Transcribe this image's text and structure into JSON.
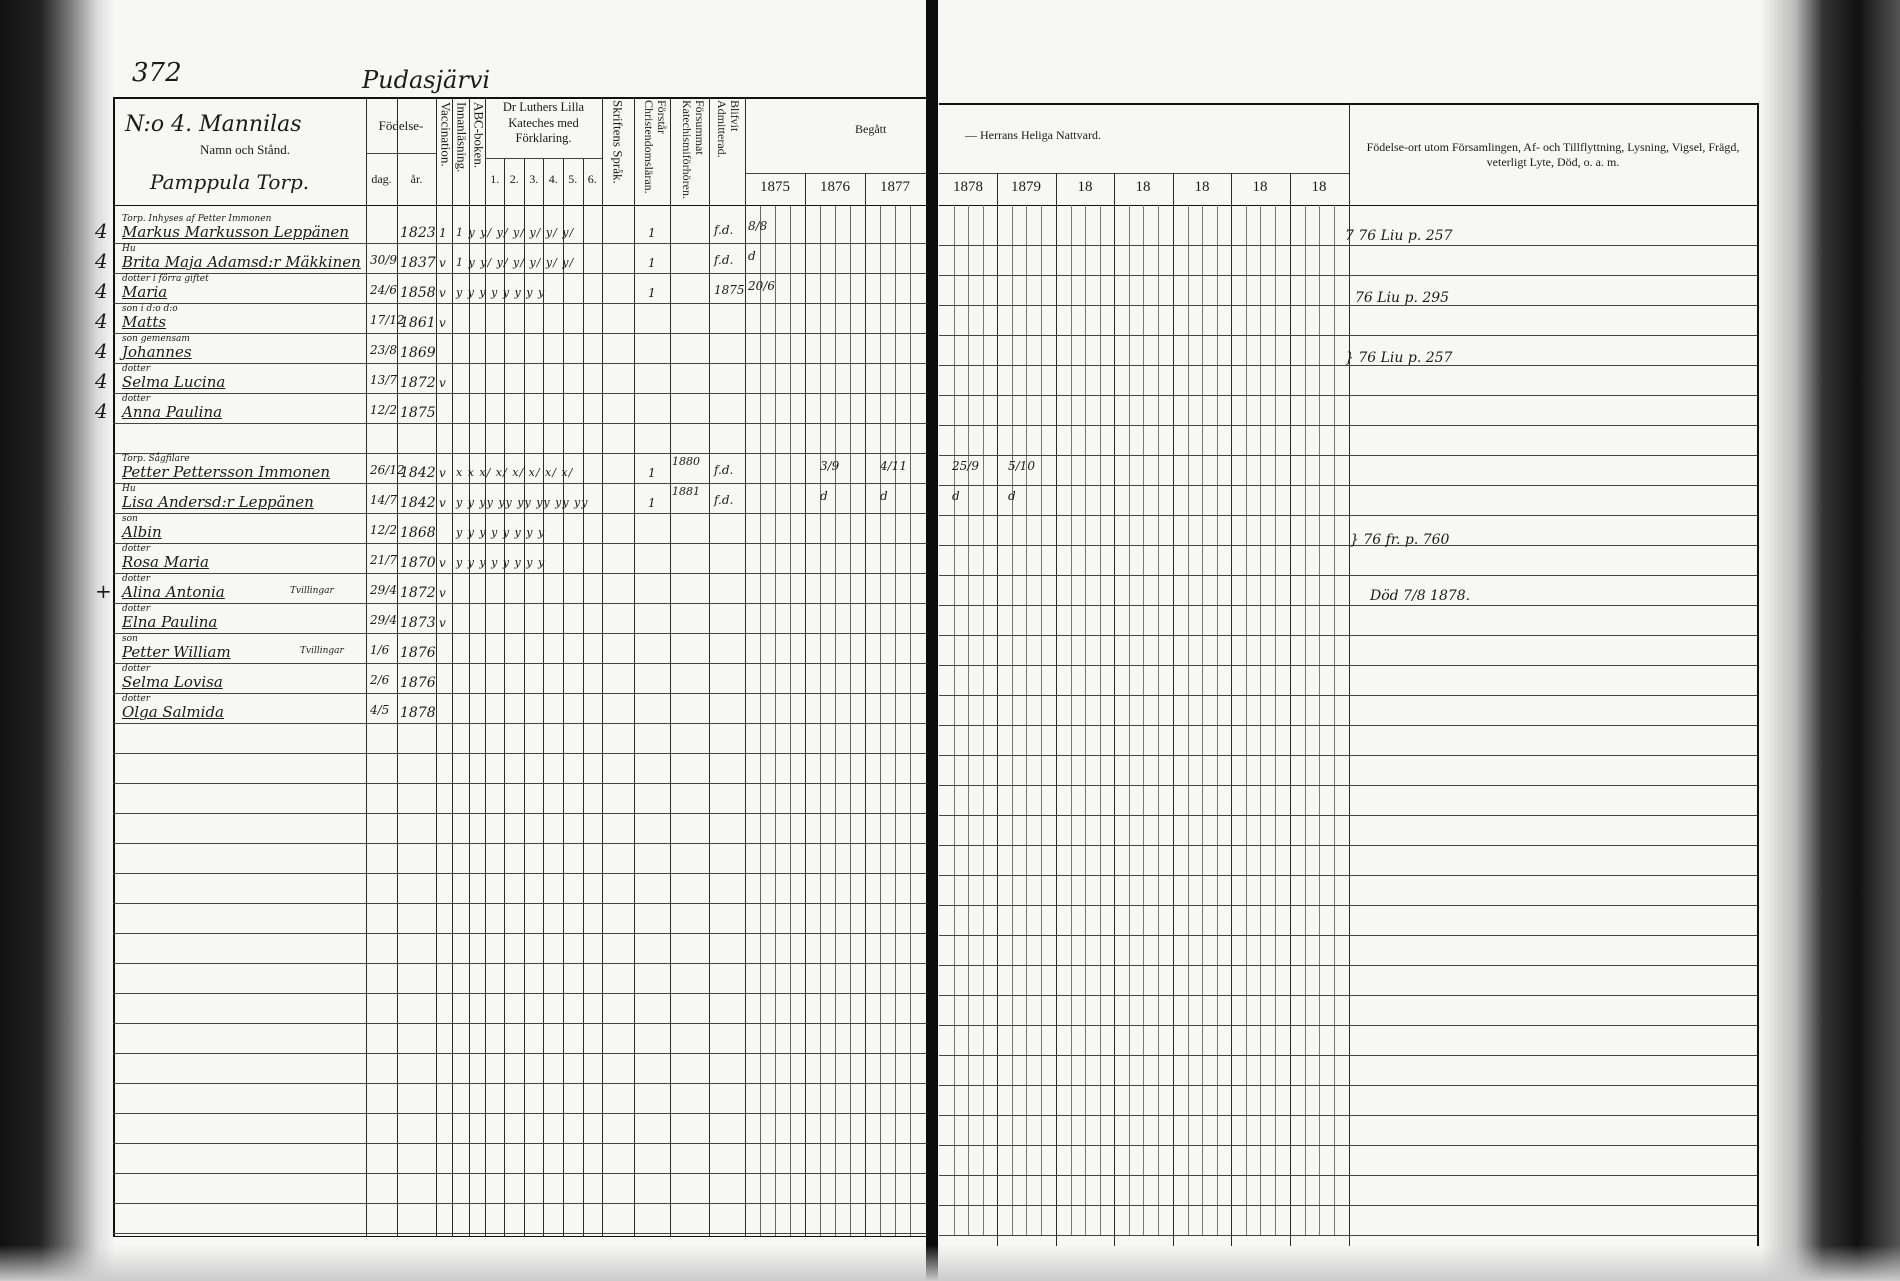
{
  "page_number": "372",
  "parish": "Pudasjärvi",
  "household": {
    "title": "N:o 4. Mannilas",
    "farm": "Pamppula Torp."
  },
  "headers": {
    "name": "Namn och Stånd.",
    "birth": "Födelse-",
    "birth_day": "dag.",
    "birth_year": "år.",
    "vaccination": "Vaccination.",
    "reading": "Innanläsning.",
    "abc": "ABC-boken.",
    "catechism": "Dr Luthers Lilla Kateches med Förklaring.",
    "catechism_parts": [
      "1.",
      "2.",
      "3.",
      "4.",
      "5.",
      "6."
    ],
    "scripture": "Skriftens Språk.",
    "understands": "Förstår Christendomsläran.",
    "missed": "Försummat Katechismiförhören.",
    "admitted": "Blifvit Admitterad.",
    "communion_left": "Begått",
    "communion_right": "— Herrans Heliga Nattvard.",
    "years": [
      "1875",
      "1876",
      "1877",
      "1878",
      "1879",
      "18",
      "18",
      "18",
      "18",
      "18"
    ],
    "notes": "Födelse-ort utom Församlingen, Af- och Tillflyttning, Lysning, Vigsel, Frägd, veterligt Lyte, Död, o. a. m."
  },
  "records": [
    {
      "margin": "4",
      "role": "Torp. Inhyses af Petter Immonen",
      "name": "Markus Markusson Leppänen",
      "day": "",
      "year": "1823",
      "vacc": "1",
      "marks": "1  y  y/ y/ y/ y/ y/ y/",
      "understands": "1",
      "missed": "",
      "admitted": "f.d.",
      "c1875": "8/8",
      "c1876": "",
      "c1877": "",
      "c1878": "",
      "c1879": ""
    },
    {
      "margin": "4",
      "role": "Hu",
      "name": "Brita Maja Adamsd:r Mäkkinen",
      "day": "30/9",
      "year": "1837",
      "vacc": "v",
      "marks": "1  y  y/ y/ y/ y/ y/ y/",
      "understands": "1",
      "missed": "",
      "admitted": "f.d.",
      "c1875": "d",
      "c1876": "",
      "c1877": "",
      "c1878": "",
      "c1879": ""
    },
    {
      "margin": "4",
      "role": "dotter i förra giftet",
      "name": "Maria",
      "day": "24/6",
      "year": "1858",
      "vacc": "v",
      "marks": "y  y  y  y  y  y  y  y",
      "understands": "1",
      "missed": "",
      "admitted": "1875",
      "c1875": "20/6",
      "c1876": "",
      "c1877": "",
      "c1878": "",
      "c1879": ""
    },
    {
      "margin": "4",
      "role": "son i d:o d:o",
      "name": "Matts",
      "day": "17/12",
      "year": "1861",
      "vacc": "v",
      "marks": "",
      "understands": "",
      "missed": "",
      "admitted": "",
      "c1875": "",
      "c1876": "",
      "c1877": "",
      "c1878": "",
      "c1879": ""
    },
    {
      "margin": "4",
      "role": "son gemensam",
      "name": "Johannes",
      "day": "23/8",
      "year": "1869",
      "vacc": "",
      "marks": "",
      "understands": "",
      "missed": "",
      "admitted": "",
      "c1875": "",
      "c1876": "",
      "c1877": "",
      "c1878": "",
      "c1879": ""
    },
    {
      "margin": "4",
      "role": "dotter",
      "name": "Selma Lucina",
      "day": "13/7",
      "year": "1872",
      "vacc": "v",
      "marks": "",
      "understands": "",
      "missed": "",
      "admitted": "",
      "c1875": "",
      "c1876": "",
      "c1877": "",
      "c1878": "",
      "c1879": ""
    },
    {
      "margin": "4",
      "role": "dotter",
      "name": "Anna Paulina",
      "day": "12/2",
      "year": "1875",
      "vacc": "",
      "marks": "",
      "understands": "",
      "missed": "",
      "admitted": "",
      "c1875": "",
      "c1876": "",
      "c1877": "",
      "c1878": "",
      "c1879": ""
    },
    {
      "margin": "",
      "role": "Torp. Sågfilare",
      "name": "Petter Pettersson Immonen",
      "day": "26/12",
      "year": "1842",
      "vacc": "v",
      "marks": "x  x  x/ x/ x/ x/ x/ x/",
      "understands": "1",
      "missed": "1880",
      "admitted": "f.d.",
      "c1875": "",
      "c1876": "3/9",
      "c1877": "4/11",
      "c1878": "25/9",
      "c1879": "5/10"
    },
    {
      "margin": "",
      "role": "Hu",
      "name": "Lisa Andersd:r Leppänen",
      "day": "14/7",
      "year": "1842",
      "vacc": "v",
      "marks": "y  y  yy yy yy yy yy yy",
      "understands": "1",
      "missed": "1881",
      "admitted": "f.d.",
      "c1875": "",
      "c1876": "d",
      "c1877": "d",
      "c1878": "d",
      "c1879": "d"
    },
    {
      "margin": "",
      "role": "son",
      "name": "Albin",
      "day": "12/2",
      "year": "1868",
      "vacc": "",
      "marks": "y  y  y  y  y  y  y  y",
      "understands": "",
      "missed": "",
      "admitted": "",
      "c1875": "",
      "c1876": "",
      "c1877": "",
      "c1878": "",
      "c1879": ""
    },
    {
      "margin": "",
      "role": "dotter",
      "name": "Rosa Maria",
      "day": "21/7",
      "year": "1870",
      "vacc": "v",
      "marks": "y  y  y  y  y  y  y  y",
      "understands": "",
      "missed": "",
      "admitted": "",
      "c1875": "",
      "c1876": "",
      "c1877": "",
      "c1878": "",
      "c1879": ""
    },
    {
      "margin": "+",
      "role": "dotter",
      "name": "Alina Antonia",
      "twin": "Tvillingar",
      "day": "29/4",
      "year": "1872",
      "vacc": "v",
      "marks": "",
      "understands": "",
      "missed": "",
      "admitted": "",
      "c1875": "",
      "c1876": "",
      "c1877": "",
      "c1878": "",
      "c1879": ""
    },
    {
      "margin": "",
      "role": "dotter",
      "name": "Elna Paulina",
      "day": "29/4",
      "year": "1873",
      "vacc": "v",
      "marks": "",
      "understands": "",
      "missed": "",
      "admitted": "",
      "c1875": "",
      "c1876": "",
      "c1877": "",
      "c1878": "",
      "c1879": ""
    },
    {
      "margin": "",
      "role": "son",
      "name": "Petter William",
      "twin": "Tvillingar",
      "day": "1/6",
      "year": "1876",
      "vacc": "",
      "marks": "",
      "understands": "",
      "missed": "",
      "admitted": "",
      "c1875": "",
      "c1876": "",
      "c1877": "",
      "c1878": "",
      "c1879": ""
    },
    {
      "margin": "",
      "role": "dotter",
      "name": "Selma Lovisa",
      "day": "2/6",
      "year": "1876",
      "vacc": "",
      "marks": "",
      "understands": "",
      "missed": "",
      "admitted": "",
      "c1875": "",
      "c1876": "",
      "c1877": "",
      "c1878": "",
      "c1879": ""
    },
    {
      "margin": "",
      "role": "dotter",
      "name": "Olga Salmida",
      "day": "4/5",
      "year": "1878",
      "vacc": "",
      "marks": "",
      "understands": "",
      "missed": "",
      "admitted": "",
      "c1875": "",
      "c1876": "",
      "c1877": "",
      "c1878": "",
      "c1879": ""
    }
  ],
  "notes": [
    {
      "text": "7 76 Liu p. 257"
    },
    {
      "text": "76 Liu p. 295"
    },
    {
      "text": "} 76 Liu p. 257"
    },
    {
      "text": "} 76 fr. p. 760"
    },
    {
      "text": "Död 7/8 1878."
    }
  ]
}
